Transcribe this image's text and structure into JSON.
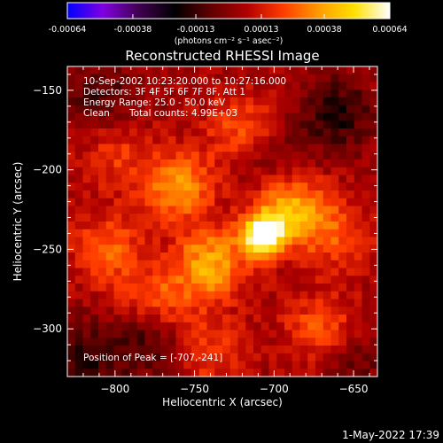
{
  "colorbar": {
    "tick_labels": [
      "-0.00064",
      "-0.00038",
      "-0.00013",
      "0.00013",
      "0.00038",
      "0.00064"
    ],
    "tick_values": [
      -0.00064,
      -0.00038,
      -0.00013,
      0.00013,
      0.00038,
      0.00064
    ],
    "units": "(photons cm⁻² s⁻¹ asec⁻²)",
    "range": [
      -0.00064,
      0.00064
    ],
    "stops": [
      "#0000ff",
      "#8000e0",
      "#400050",
      "#000000",
      "#600000",
      "#b00000",
      "#ff3a00",
      "#ff9a00",
      "#ffe000",
      "#ffffff"
    ]
  },
  "annotations": {
    "line1": "10-Sep-2002 10:23:20.000 to 10:27:16.000",
    "line2": "Detectors: 3F 4F 5F 6F 7F 8F, Att 1",
    "line3": "Energy Range: 25.0 - 50.0 keV",
    "line4_a": "Clean",
    "line4_b": "Total counts: 4.99E+03",
    "peak": "Position of Peak = [-707,-241]"
  },
  "stamp": "1-May-2022 17:39",
  "chart_data": {
    "type": "heatmap",
    "title": "Reconstructed RHESSI Image",
    "xlabel": "Heliocentric X (arcsec)",
    "ylabel": "Heliocentric Y (arcsec)",
    "xlim": [
      -830,
      -635
    ],
    "ylim": [
      -330,
      -135
    ],
    "x_ticks": [
      -800,
      -750,
      -700,
      -650
    ],
    "y_ticks": [
      -150,
      -200,
      -250,
      -300
    ],
    "x_tick_labels": [
      "−800",
      "−750",
      "−700",
      "−650"
    ],
    "y_tick_labels": [
      "−150",
      "−200",
      "−250",
      "−300"
    ],
    "value_units": "photons cm-2 s-1 asec-2",
    "value_range": [
      -0.00064,
      0.00064
    ],
    "peak_position": [
      -707,
      -241
    ],
    "grid_resolution": [
      40,
      40
    ],
    "features": [
      {
        "x": -707,
        "y": -241,
        "value": 0.00064
      },
      {
        "x": -690,
        "y": -225,
        "value": 0.00038
      },
      {
        "x": -740,
        "y": -260,
        "value": 0.00035
      },
      {
        "x": -760,
        "y": -210,
        "value": 0.0003
      },
      {
        "x": -775,
        "y": -285,
        "value": 0.00025
      },
      {
        "x": -805,
        "y": -250,
        "value": 0.00022
      },
      {
        "x": -720,
        "y": -175,
        "value": 0.0002
      },
      {
        "x": -670,
        "y": -300,
        "value": 0.00022
      },
      {
        "x": -660,
        "y": -240,
        "value": 0.00018
      },
      {
        "x": -800,
        "y": -190,
        "value": 0.00015
      },
      {
        "x": -740,
        "y": -315,
        "value": 0.00016
      },
      {
        "x": -810,
        "y": -155,
        "value": -0.00015
      },
      {
        "x": -660,
        "y": -165,
        "value": -0.0002
      },
      {
        "x": -780,
        "y": -305,
        "value": -0.00022
      },
      {
        "x": -700,
        "y": -195,
        "value": -0.00012
      },
      {
        "x": -820,
        "y": -320,
        "value": -0.00018
      },
      {
        "x": -650,
        "y": -320,
        "value": -0.00012
      }
    ]
  }
}
